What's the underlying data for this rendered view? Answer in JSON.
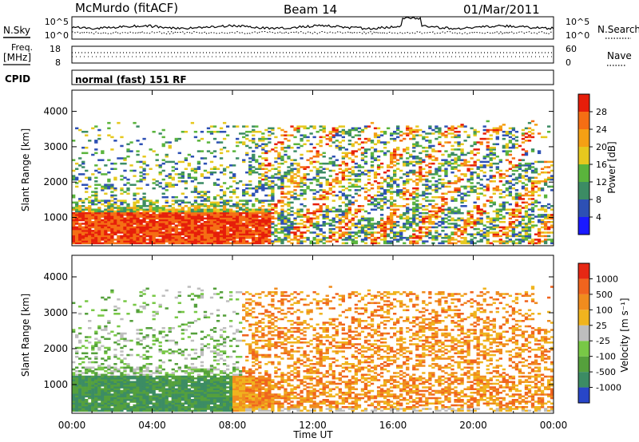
{
  "header": {
    "station": "McMurdo (fitACF)",
    "beam": "Beam 14",
    "date": "01/Mar/2011"
  },
  "side_labels": {
    "nsky": "N.Sky",
    "nsearch": "N.Search",
    "freq": "Freq.",
    "freq_unit": "[MHz]",
    "nave": "Nave",
    "cpid": "CPID",
    "cpid_value": "normal (fast) 151 RF"
  },
  "noise_axis": {
    "left_ticks": [
      "10^5",
      "10^0"
    ],
    "right_ticks": [
      "10^5",
      "10^0"
    ]
  },
  "freq_axis": {
    "left_ticks": [
      "18",
      "8"
    ],
    "right_ticks": [
      "60",
      "0"
    ]
  },
  "chart_data": [
    {
      "type": "heatmap",
      "title": "",
      "quantity": "Power",
      "xlabel": "Time UT",
      "ylabel": "Slant Range [km]",
      "x_ticks": [
        "00:00",
        "04:00",
        "08:00",
        "12:00",
        "16:00",
        "20:00",
        "00:00"
      ],
      "y_ticks": [
        1000,
        2000,
        3000,
        4000
      ],
      "ylim": [
        200,
        4600
      ],
      "colorbar": {
        "label": "Power [dB]",
        "ticks": [
          "4",
          "8",
          "12",
          "16",
          "20",
          "24",
          "28"
        ],
        "levels": [
          0,
          4,
          8,
          12,
          16,
          20,
          24,
          28,
          32
        ],
        "colors": [
          "#1a1aff",
          "#2d50b4",
          "#3c8c64",
          "#5ab43c",
          "#e6c81e",
          "#f5a014",
          "#f56e14",
          "#e61e0a"
        ]
      }
    },
    {
      "type": "heatmap",
      "title": "",
      "quantity": "Velocity",
      "xlabel": "Time UT",
      "ylabel": "Slant Range [km]",
      "x_ticks": [
        "00:00",
        "04:00",
        "08:00",
        "12:00",
        "16:00",
        "20:00",
        "00:00"
      ],
      "y_ticks": [
        1000,
        2000,
        3000,
        4000
      ],
      "ylim": [
        200,
        4600
      ],
      "colorbar": {
        "label": "Velocity [m s⁻¹]",
        "ticks": [
          "1000",
          "500",
          "100",
          "25",
          "-25",
          "-100",
          "-500",
          "-1000"
        ],
        "colors": [
          "#2846c8",
          "#3c8c64",
          "#55a03c",
          "#78c846",
          "#bebebe",
          "#f0b41e",
          "#f08c1e",
          "#f0641e",
          "#e62814"
        ]
      }
    }
  ]
}
